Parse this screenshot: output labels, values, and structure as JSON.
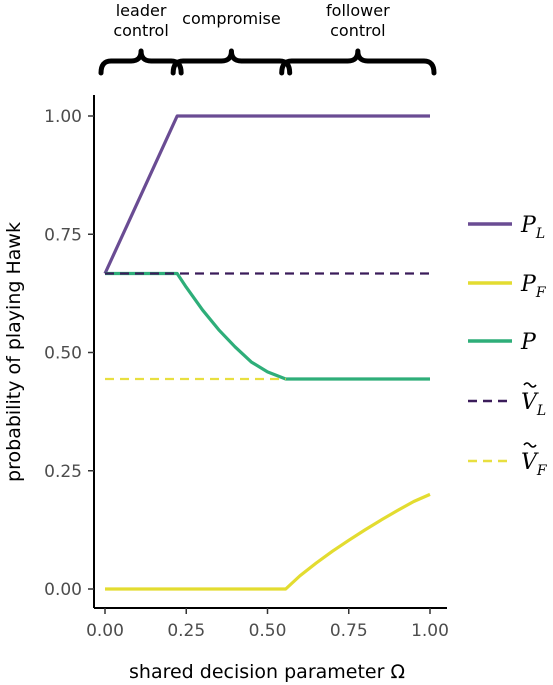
{
  "chart_data": {
    "type": "line",
    "xlabel": "shared decision parameter Ω",
    "ylabel": "probability of playing Hawk",
    "xlim": [
      0,
      1
    ],
    "ylim": [
      0,
      1.05
    ],
    "x_ticks": [
      0,
      0.25,
      0.5,
      0.75,
      1
    ],
    "x_tick_labels": [
      "0.00",
      "0.25",
      "0.50",
      "0.75",
      "1.00"
    ],
    "y_ticks": [
      0,
      0.25,
      0.5,
      0.75,
      1
    ],
    "y_tick_labels": [
      "0.00",
      "0.25",
      "0.50",
      "0.75",
      "1.00"
    ],
    "grid": false,
    "legend_position": "right",
    "regions": [
      {
        "label_lines": [
          "leader",
          "control"
        ],
        "x_start": 0.0,
        "x_end": 0.222
      },
      {
        "label_lines": [
          "compromise"
        ],
        "x_start": 0.222,
        "x_end": 0.556
      },
      {
        "label_lines": [
          "follower",
          "control"
        ],
        "x_start": 0.556,
        "x_end": 1.0
      }
    ],
    "series": [
      {
        "name_main": "P",
        "name_sub": "L",
        "color": "#6a4c93",
        "dash": false,
        "x": [
          0,
          0.222,
          1.0
        ],
        "y": [
          0.667,
          1.0,
          1.0
        ]
      },
      {
        "name_main": "P",
        "name_sub": "F",
        "color": "#e3dc30",
        "dash": false,
        "x": [
          0,
          0.556,
          0.6,
          0.65,
          0.7,
          0.75,
          0.8,
          0.85,
          0.9,
          0.95,
          1.0
        ],
        "y": [
          0,
          0,
          0.028,
          0.055,
          0.08,
          0.103,
          0.125,
          0.146,
          0.166,
          0.185,
          0.2
        ]
      },
      {
        "name_main": "P",
        "name_sub": "",
        "color": "#2eae79",
        "dash": false,
        "x": [
          0,
          0.222,
          0.25,
          0.3,
          0.35,
          0.4,
          0.45,
          0.5,
          0.556,
          1.0
        ],
        "y": [
          0.667,
          0.667,
          0.638,
          0.59,
          0.548,
          0.512,
          0.48,
          0.459,
          0.444,
          0.444
        ]
      },
      {
        "name_main": "V",
        "name_sub": "L",
        "color": "#3b1c5a",
        "dash": true,
        "x": [
          0,
          1.0
        ],
        "y": [
          0.667,
          0.667
        ]
      },
      {
        "name_main": "V",
        "name_sub": "F",
        "color": "#e8df40",
        "dash": true,
        "x": [
          0,
          0.556
        ],
        "y": [
          0.444,
          0.444
        ]
      }
    ]
  }
}
